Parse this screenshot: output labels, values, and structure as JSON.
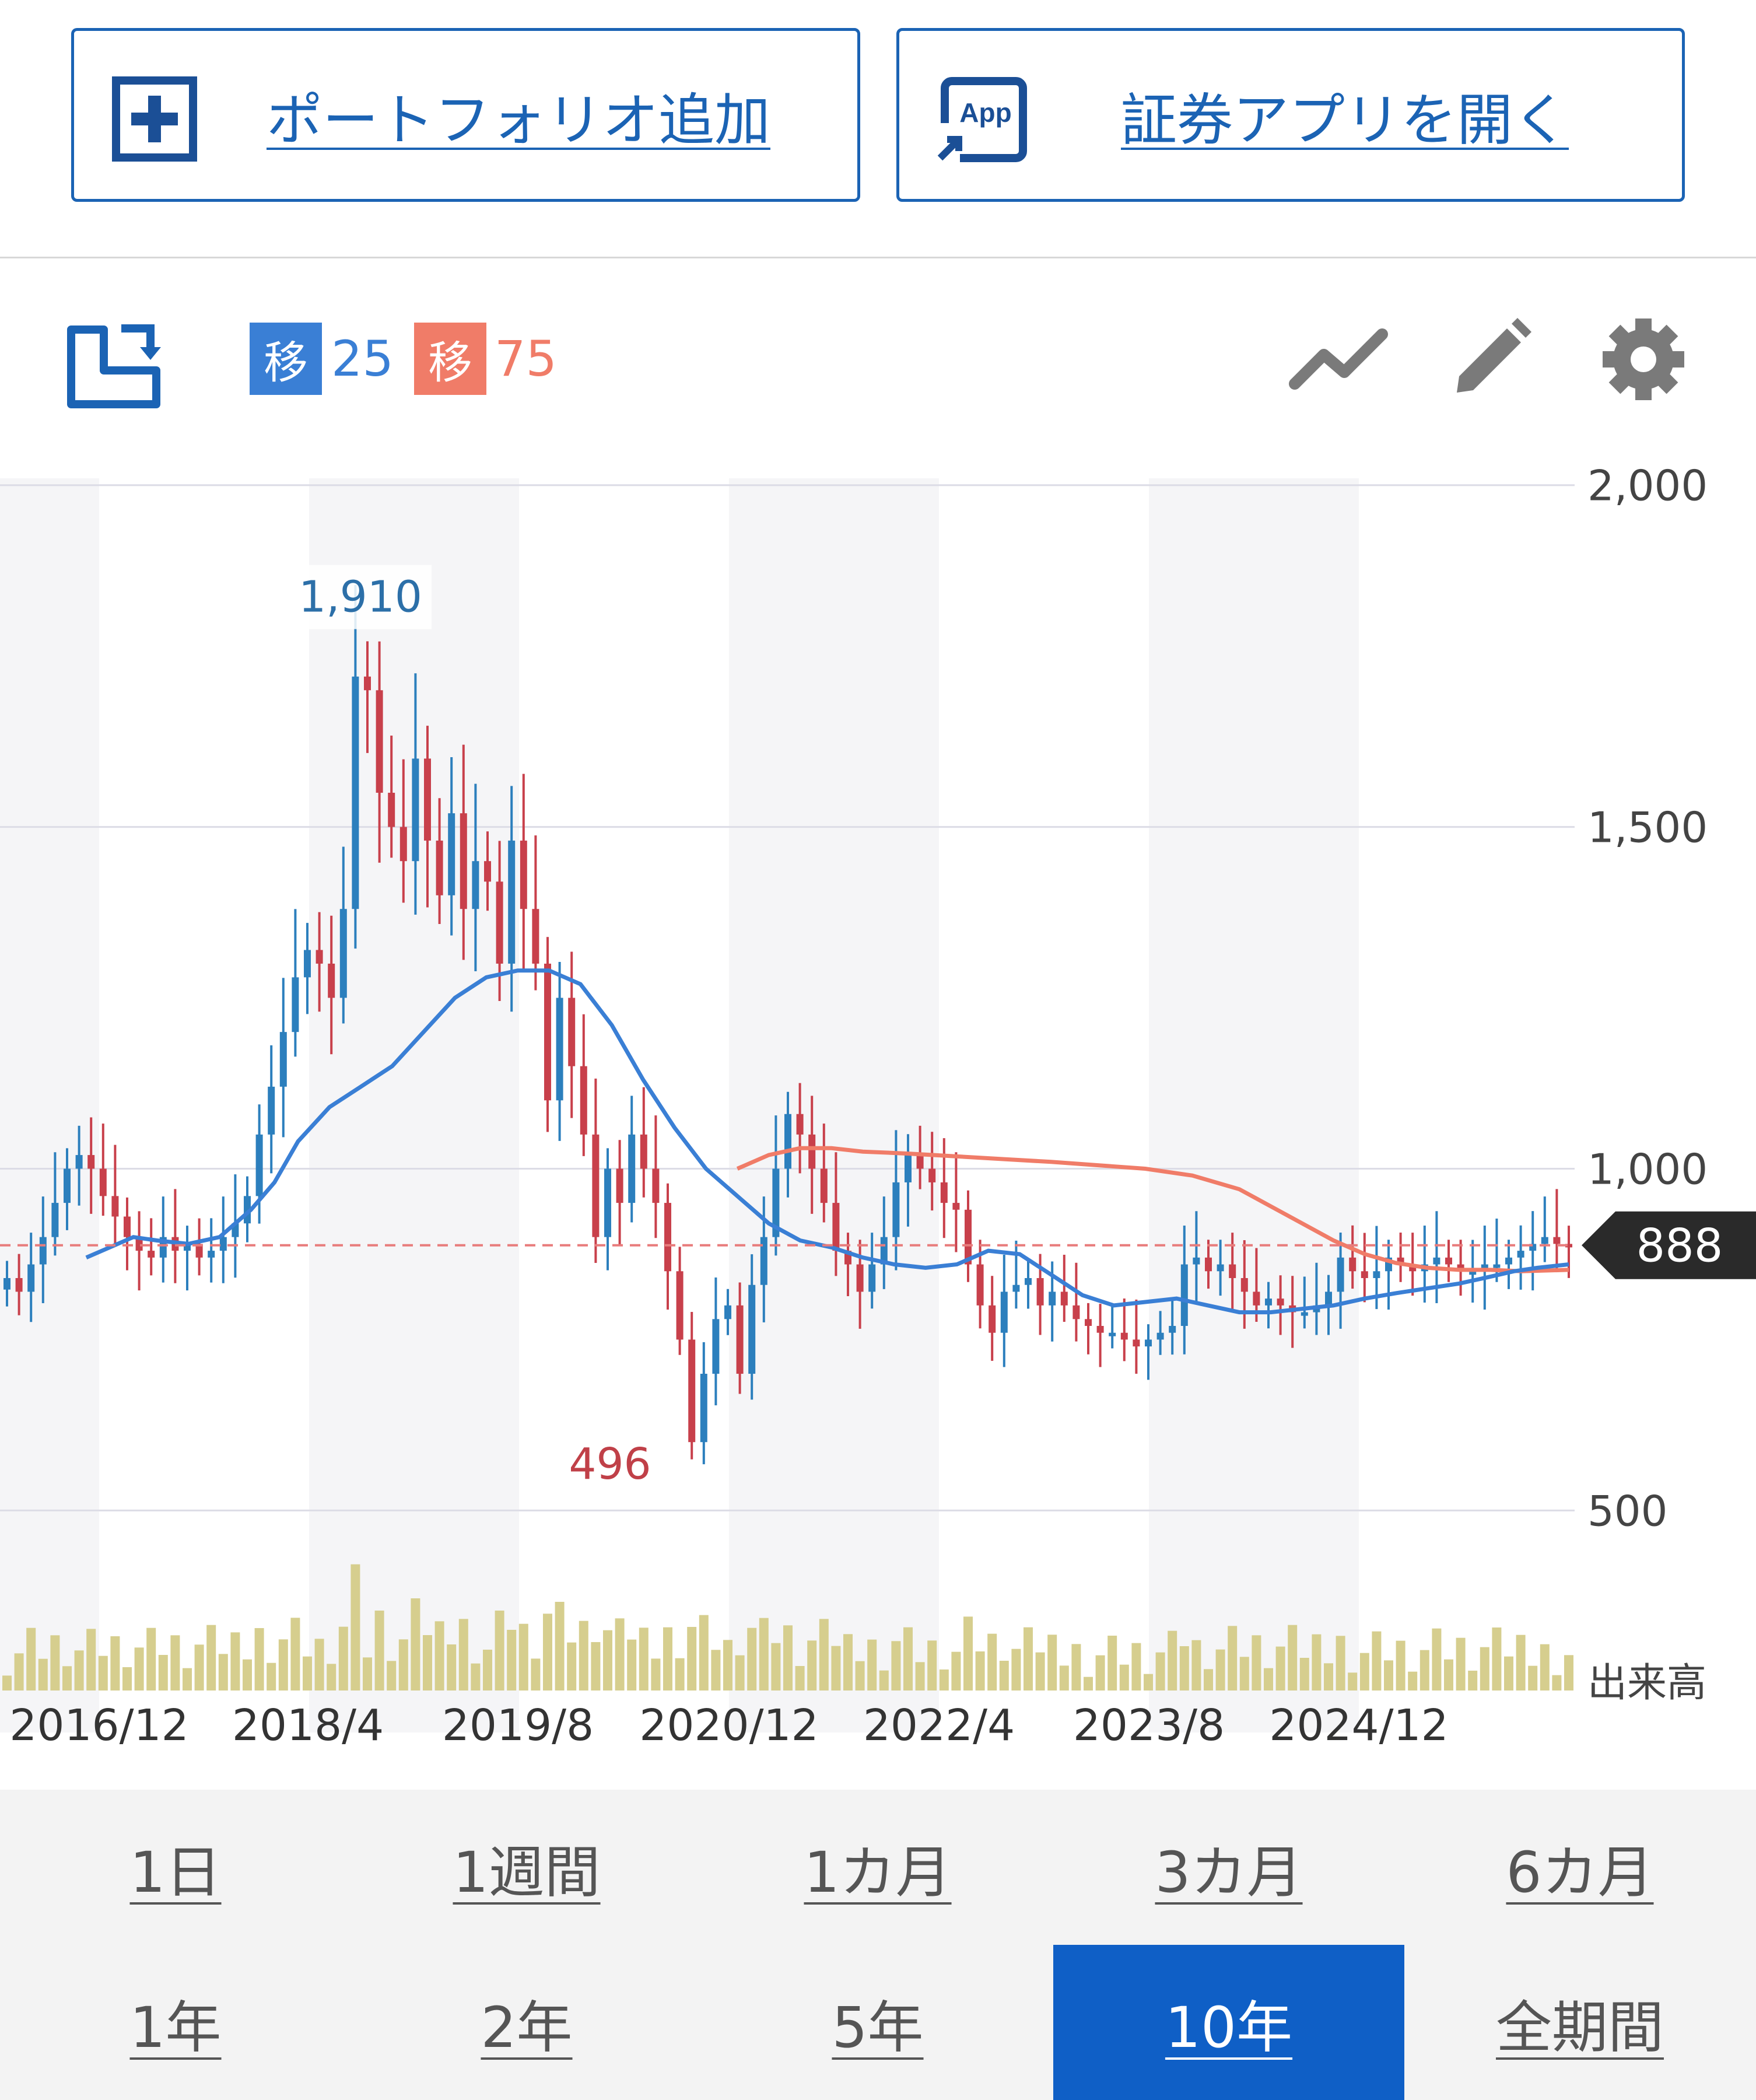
{
  "top_buttons": {
    "portfolio_label": "ポートフォリオ追加",
    "app_label": "証券アプリを開く",
    "app_icon_text": "App"
  },
  "toolbar": {
    "ma_badge_char": "移",
    "ma_short": "25",
    "ma_long": "75",
    "ma_short_color": "#3a7fd5",
    "ma_long_color": "#f07c68"
  },
  "periods": [
    {
      "label": "1日",
      "active": false
    },
    {
      "label": "1週間",
      "active": false
    },
    {
      "label": "1カ月",
      "active": false
    },
    {
      "label": "3カ月",
      "active": false
    },
    {
      "label": "6カ月",
      "active": false
    },
    {
      "label": "1年",
      "active": false
    },
    {
      "label": "2年",
      "active": false
    },
    {
      "label": "5年",
      "active": false
    },
    {
      "label": "10年",
      "active": true
    },
    {
      "label": "全期間",
      "active": false
    }
  ],
  "chart_data": {
    "type": "candlestick",
    "yticks": [
      "2,000",
      "1,500",
      "1,000",
      "500"
    ],
    "ytick_values": [
      2000,
      1500,
      1000,
      500
    ],
    "ylim": [
      380,
      2010
    ],
    "xtick_labels": [
      "2016/12",
      "2018/4",
      "2019/8",
      "2020/12",
      "2022/4",
      "2023/8",
      "2024/12"
    ],
    "volume_label": "出来高",
    "current_price": 888,
    "current_price_label": "888",
    "high_label": "1,910",
    "high_value": 1910,
    "low_label": "496",
    "low_value": 496,
    "up_color": "#2c7fbd",
    "down_color": "#c8404b",
    "volume_color": "#d6ce8e",
    "series_closes": [
      840,
      820,
      860,
      900,
      950,
      1000,
      1020,
      1000,
      960,
      930,
      900,
      880,
      870,
      900,
      880,
      890,
      870,
      880,
      900,
      920,
      960,
      1050,
      1120,
      1200,
      1280,
      1320,
      1300,
      1250,
      1380,
      1720,
      1700,
      1550,
      1500,
      1450,
      1600,
      1480,
      1400,
      1520,
      1380,
      1450,
      1420,
      1300,
      1480,
      1380,
      1300,
      1100,
      1250,
      1150,
      1050,
      900,
      1000,
      950,
      1050,
      1000,
      950,
      850,
      750,
      600,
      700,
      780,
      800,
      700,
      830,
      900,
      1000,
      1080,
      1050,
      1000,
      950,
      880,
      860,
      820,
      860,
      900,
      980,
      1020,
      1000,
      980,
      950,
      940,
      860,
      800,
      760,
      820,
      830,
      840,
      800,
      820,
      800,
      780,
      770,
      760,
      760,
      750,
      740,
      750,
      760,
      770,
      860,
      870,
      850,
      860,
      840,
      820,
      800,
      810,
      800,
      790,
      790,
      800,
      820,
      870,
      850,
      840,
      850,
      870,
      860,
      850,
      860,
      870,
      860,
      850,
      850,
      860,
      860,
      870,
      880,
      890,
      900,
      890,
      888
    ],
    "ma25_points": [
      [
        0.055,
        870
      ],
      [
        0.07,
        885
      ],
      [
        0.085,
        900
      ],
      [
        0.1,
        895
      ],
      [
        0.12,
        890
      ],
      [
        0.14,
        900
      ],
      [
        0.16,
        940
      ],
      [
        0.175,
        980
      ],
      [
        0.19,
        1040
      ],
      [
        0.21,
        1090
      ],
      [
        0.23,
        1120
      ],
      [
        0.25,
        1150
      ],
      [
        0.27,
        1200
      ],
      [
        0.29,
        1250
      ],
      [
        0.31,
        1280
      ],
      [
        0.33,
        1290
      ],
      [
        0.35,
        1290
      ],
      [
        0.37,
        1270
      ],
      [
        0.39,
        1210
      ],
      [
        0.41,
        1130
      ],
      [
        0.43,
        1060
      ],
      [
        0.45,
        1000
      ],
      [
        0.47,
        960
      ],
      [
        0.49,
        920
      ],
      [
        0.51,
        895
      ],
      [
        0.53,
        885
      ],
      [
        0.55,
        870
      ],
      [
        0.57,
        860
      ],
      [
        0.59,
        855
      ],
      [
        0.61,
        860
      ],
      [
        0.63,
        880
      ],
      [
        0.65,
        875
      ],
      [
        0.67,
        845
      ],
      [
        0.69,
        815
      ],
      [
        0.71,
        800
      ],
      [
        0.73,
        805
      ],
      [
        0.75,
        810
      ],
      [
        0.77,
        800
      ],
      [
        0.79,
        790
      ],
      [
        0.81,
        790
      ],
      [
        0.83,
        795
      ],
      [
        0.85,
        800
      ],
      [
        0.87,
        810
      ],
      [
        0.89,
        818
      ],
      [
        0.91,
        825
      ],
      [
        0.93,
        832
      ],
      [
        0.95,
        842
      ],
      [
        0.965,
        850
      ],
      [
        0.98,
        855
      ],
      [
        1.0,
        860
      ]
    ],
    "ma75_points": [
      [
        0.47,
        1000
      ],
      [
        0.49,
        1020
      ],
      [
        0.51,
        1030
      ],
      [
        0.53,
        1030
      ],
      [
        0.55,
        1025
      ],
      [
        0.58,
        1022
      ],
      [
        0.61,
        1018
      ],
      [
        0.64,
        1014
      ],
      [
        0.67,
        1010
      ],
      [
        0.7,
        1005
      ],
      [
        0.73,
        1000
      ],
      [
        0.76,
        990
      ],
      [
        0.79,
        970
      ],
      [
        0.81,
        945
      ],
      [
        0.83,
        920
      ],
      [
        0.85,
        895
      ],
      [
        0.87,
        875
      ],
      [
        0.89,
        862
      ],
      [
        0.91,
        855
      ],
      [
        0.93,
        852
      ],
      [
        0.95,
        852
      ],
      [
        0.97,
        850
      ],
      [
        1.0,
        852
      ]
    ]
  }
}
